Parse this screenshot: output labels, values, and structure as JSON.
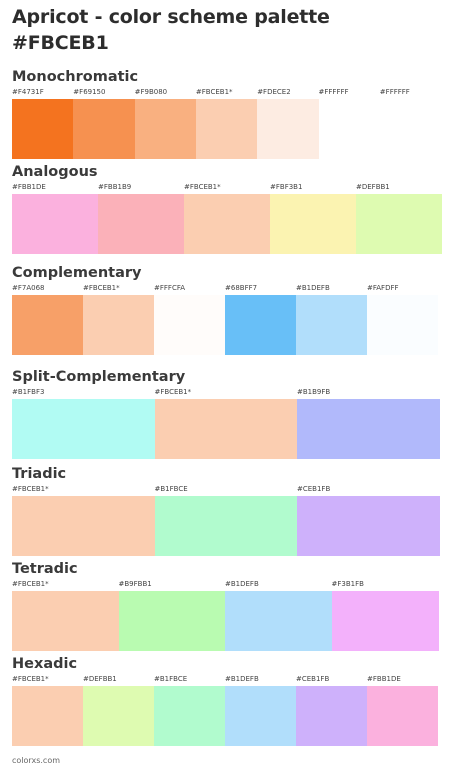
{
  "page": {
    "title_line1": "Apricot - color scheme palette",
    "title_line2": "#FBCEB1",
    "footer": "colorxs.com"
  },
  "sections": [
    {
      "name": "Monochromatic",
      "colors": [
        {
          "label": "#F4731F",
          "hex": "#F4731F"
        },
        {
          "label": "#F69150",
          "hex": "#F69150"
        },
        {
          "label": "#F9B080",
          "hex": "#F9B080"
        },
        {
          "label": "#FBCEB1*",
          "hex": "#FBCEB1"
        },
        {
          "label": "#FDECE2",
          "hex": "#FDECE2"
        },
        {
          "label": "#FFFFFF",
          "hex": "#FFFFFF"
        },
        {
          "label": "#FFFFFF",
          "hex": "#FFFFFF"
        }
      ]
    },
    {
      "name": "Analogous",
      "colors": [
        {
          "label": "#FBB1DE",
          "hex": "#FBB1DE"
        },
        {
          "label": "#FBB1B9",
          "hex": "#FBB1B9"
        },
        {
          "label": "#FBCEB1*",
          "hex": "#FBCEB1"
        },
        {
          "label": "#FBF3B1",
          "hex": "#FBF3B1"
        },
        {
          "label": "#DEFBB1",
          "hex": "#DEFBB1"
        }
      ]
    },
    {
      "name": "Complementary",
      "colors": [
        {
          "label": "#F7A068",
          "hex": "#F7A068"
        },
        {
          "label": "#FBCEB1*",
          "hex": "#FBCEB1"
        },
        {
          "label": "#FFFCFA",
          "hex": "#FFFCFA"
        },
        {
          "label": "#68BFF7",
          "hex": "#68BFF7"
        },
        {
          "label": "#B1DEFB",
          "hex": "#B1DEFB"
        },
        {
          "label": "#FAFDFF",
          "hex": "#FAFDFF"
        }
      ]
    },
    {
      "name": "Split-Complementary",
      "colors": [
        {
          "label": "#B1FBF3",
          "hex": "#B1FBF3"
        },
        {
          "label": "#FBCEB1*",
          "hex": "#FBCEB1"
        },
        {
          "label": "#B1B9FB",
          "hex": "#B1B9FB"
        }
      ]
    },
    {
      "name": "Triadic",
      "colors": [
        {
          "label": "#FBCEB1*",
          "hex": "#FBCEB1"
        },
        {
          "label": "#B1FBCE",
          "hex": "#B1FBCE"
        },
        {
          "label": "#CEB1FB",
          "hex": "#CEB1FB"
        }
      ]
    },
    {
      "name": "Tetradic",
      "colors": [
        {
          "label": "#FBCEB1*",
          "hex": "#FBCEB1"
        },
        {
          "label": "#B9FBB1",
          "hex": "#B9FBB1"
        },
        {
          "label": "#B1DEFB",
          "hex": "#B1DEFB"
        },
        {
          "label": "#F3B1FB",
          "hex": "#F3B1FB"
        }
      ]
    },
    {
      "name": "Hexadic",
      "colors": [
        {
          "label": "#FBCEB1*",
          "hex": "#FBCEB1"
        },
        {
          "label": "#DEFBB1",
          "hex": "#DEFBB1"
        },
        {
          "label": "#B1FBCE",
          "hex": "#B1FBCE"
        },
        {
          "label": "#B1DEFB",
          "hex": "#B1DEFB"
        },
        {
          "label": "#CEB1FB",
          "hex": "#CEB1FB"
        },
        {
          "label": "#FBB1DE",
          "hex": "#FBB1DE"
        }
      ]
    }
  ]
}
